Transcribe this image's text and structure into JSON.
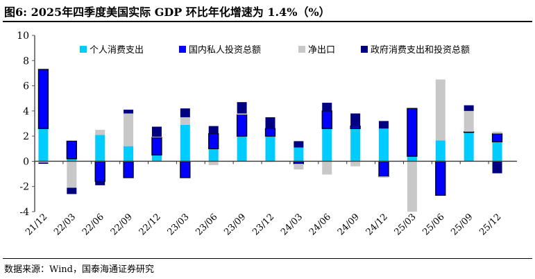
{
  "title": "图6:  2025年四季度美国实际 GDP 环比年化增速为 1.4%（%）",
  "source": "数据来源：Wind，国泰海通证券研究",
  "chart_data": {
    "type": "bar",
    "stacked": true,
    "categories": [
      "21/12",
      "22/03",
      "22/06",
      "22/09",
      "22/12",
      "23/03",
      "23/06",
      "23/09",
      "23/12",
      "24/03",
      "24/06",
      "24/09",
      "24/12",
      "25/03",
      "25/06",
      "25/09",
      "25/12"
    ],
    "series": [
      {
        "name": "个人消费支出",
        "color": "#00CCFF",
        "values": [
          2.6,
          0.2,
          2.1,
          1.2,
          0.5,
          2.9,
          1.0,
          2.0,
          2.0,
          1.1,
          2.6,
          2.6,
          2.6,
          0.4,
          1.65,
          2.3,
          1.55
        ]
      },
      {
        "name": "国内私人投资总额",
        "color": "#0000FF",
        "values": [
          4.7,
          1.4,
          -1.6,
          -1.3,
          1.4,
          -1.3,
          1.2,
          1.7,
          0.6,
          -0.2,
          1.4,
          0.2,
          -1.2,
          3.8,
          -2.7,
          0.05,
          0.65
        ]
      },
      {
        "name": "净出口",
        "color": "#C8C8C8",
        "values": [
          -0.1,
          -2.1,
          0.4,
          2.6,
          0.05,
          0.6,
          -0.3,
          0.1,
          -0.05,
          -0.45,
          -1.05,
          -0.4,
          -0.1,
          -4.1,
          4.85,
          1.65,
          0.15
        ]
      },
      {
        "name": "政府消费支出和投资总额",
        "color": "#000080",
        "values": [
          -0.1,
          -0.5,
          -0.3,
          0.3,
          0.8,
          0.7,
          0.6,
          0.9,
          0.9,
          0.5,
          0.65,
          1.0,
          0.6,
          0.0,
          0.0,
          0.45,
          -0.95
        ]
      }
    ],
    "ylim": [
      -4,
      10
    ],
    "yticks": [
      -4,
      -2,
      0,
      2,
      4,
      6,
      8,
      10
    ],
    "xlabel": "",
    "ylabel": "",
    "legend": "top",
    "grid": false
  }
}
